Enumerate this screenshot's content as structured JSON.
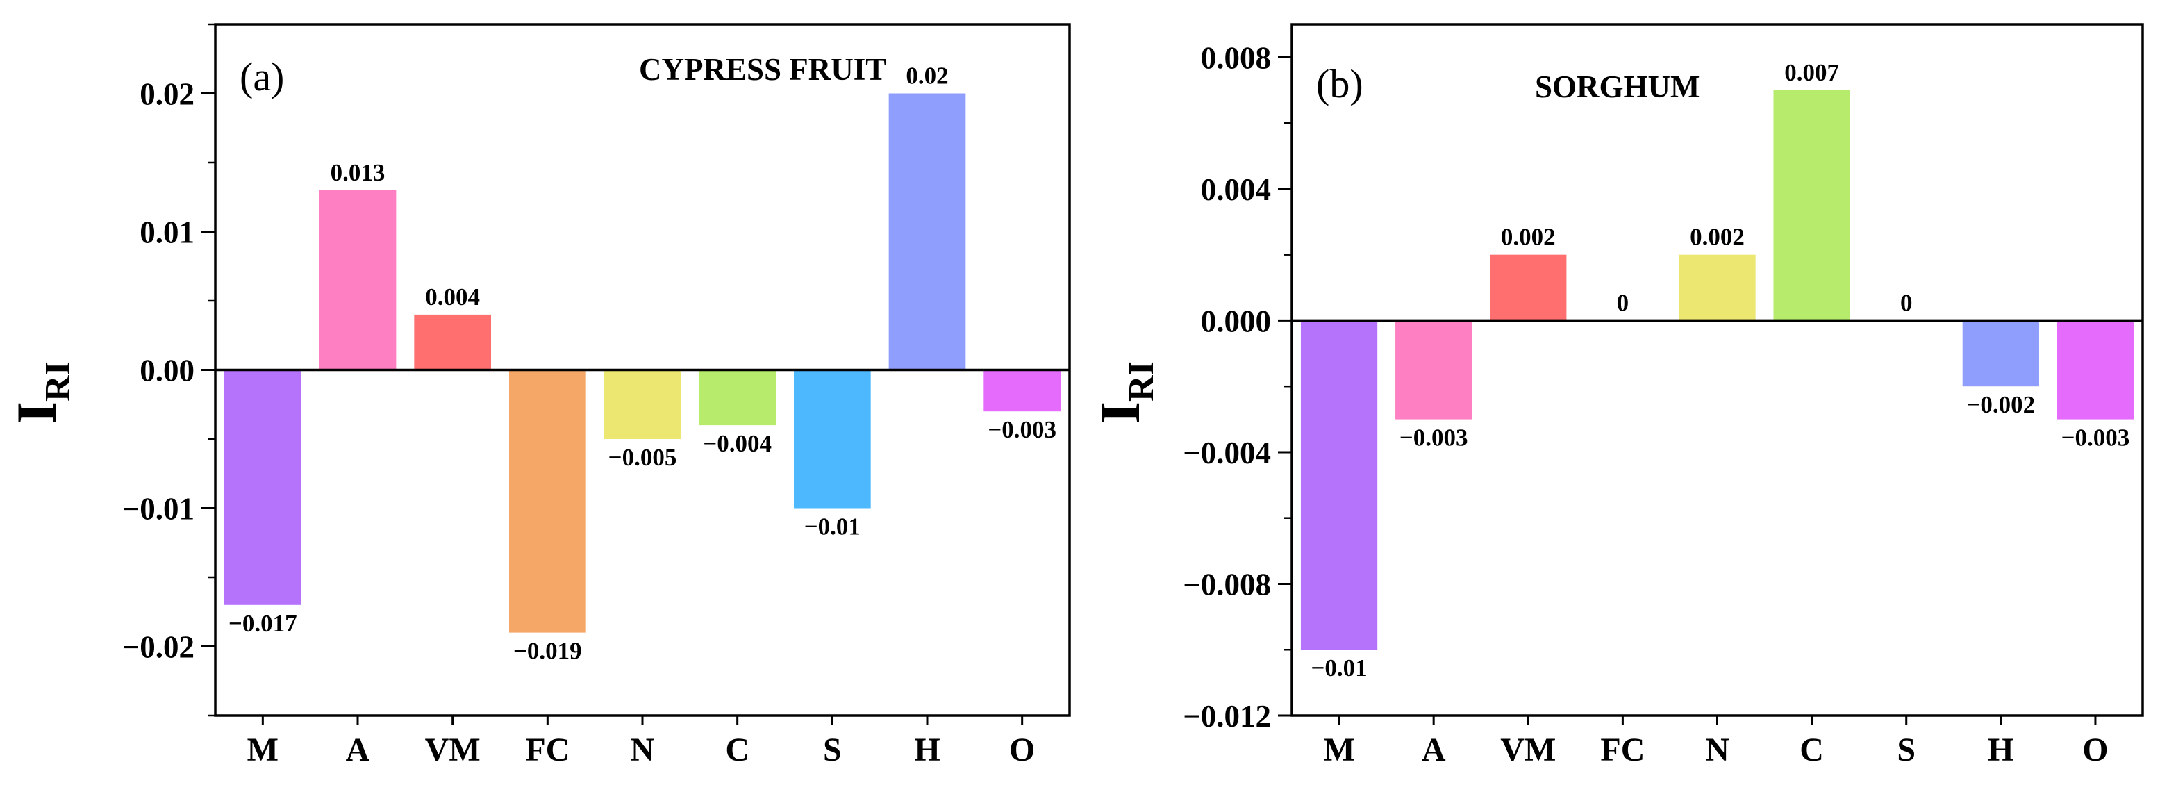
{
  "chart_data": [
    {
      "type": "bar",
      "panel_label": "(a)",
      "title": "CYPRESS FRUIT",
      "ylabel_main": "I",
      "ylabel_sub": "RI",
      "xlabel": "",
      "ylim": [
        -0.025,
        0.025
      ],
      "yticks": [
        {
          "value": 0.02,
          "label": "0.02"
        },
        {
          "value": 0.01,
          "label": "0.01"
        },
        {
          "value": 0,
          "label": "0.00"
        },
        {
          "value": -0.01,
          "label": "−0.01"
        },
        {
          "value": -0.02,
          "label": "−0.02"
        }
      ],
      "categories": [
        "M",
        "A",
        "VM",
        "FC",
        "N",
        "C",
        "S",
        "H",
        "O"
      ],
      "values": [
        -0.017,
        0.013,
        0.004,
        -0.019,
        -0.005,
        -0.004,
        -0.01,
        0.02,
        -0.003
      ],
      "data_labels": [
        "−0.017",
        "0.013",
        "0.004",
        "−0.019",
        "−0.005",
        "−0.004",
        "−0.01",
        "0.02",
        "−0.003"
      ],
      "colors": [
        "#b573fb",
        "#ff80c2",
        "#ff6f6f",
        "#f4a766",
        "#ece770",
        "#b6eb6b",
        "#4eb8ff",
        "#8f9efd",
        "#e46bfb"
      ]
    },
    {
      "type": "bar",
      "panel_label": "(b)",
      "title": "SORGHUM",
      "ylabel_main": "I",
      "ylabel_sub": "RI",
      "xlabel": "",
      "ylim": [
        -0.012,
        0.009
      ],
      "yticks": [
        {
          "value": 0.008,
          "label": "0.008"
        },
        {
          "value": 0.004,
          "label": "0.004"
        },
        {
          "value": 0,
          "label": "0.000"
        },
        {
          "value": -0.004,
          "label": "−0.004"
        },
        {
          "value": -0.008,
          "label": "−0.008"
        },
        {
          "value": -0.012,
          "label": "−0.012"
        }
      ],
      "categories": [
        "M",
        "A",
        "VM",
        "FC",
        "N",
        "C",
        "S",
        "H",
        "O"
      ],
      "values": [
        -0.01,
        -0.003,
        0.002,
        0,
        0.002,
        0.007,
        0,
        -0.002,
        -0.003
      ],
      "data_labels": [
        "−0.01",
        "−0.003",
        "0.002",
        "0",
        "0.002",
        "0.007",
        "0",
        "−0.002",
        "−0.003"
      ],
      "colors": [
        "#b573fb",
        "#ff80c2",
        "#ff6f6f",
        "#f4a766",
        "#ece770",
        "#b6eb6b",
        "#4eb8ff",
        "#8f9efd",
        "#e46bfb"
      ]
    }
  ]
}
